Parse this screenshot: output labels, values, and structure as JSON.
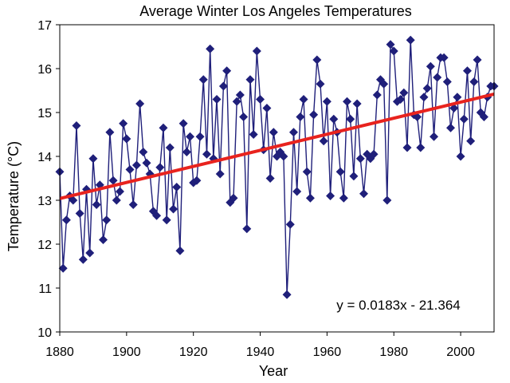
{
  "chart_data": {
    "type": "line",
    "title": "Average Winter Los Angeles Temperatures",
    "xlabel": "Year",
    "ylabel": "Temperature  (°C)",
    "xlim": [
      1880,
      2010
    ],
    "ylim": [
      10,
      17
    ],
    "xticks": [
      1880,
      1900,
      1920,
      1940,
      1960,
      1980,
      2000
    ],
    "yticks": [
      10,
      11,
      12,
      13,
      14,
      15,
      16,
      17
    ],
    "grid": false,
    "series": [
      {
        "color": "#1F1F7A",
        "marker": "diamond",
        "x": [
          1880,
          1881,
          1882,
          1883,
          1884,
          1885,
          1886,
          1887,
          1888,
          1889,
          1890,
          1891,
          1892,
          1893,
          1894,
          1895,
          1896,
          1897,
          1898,
          1899,
          1900,
          1901,
          1902,
          1903,
          1904,
          1905,
          1906,
          1907,
          1908,
          1909,
          1910,
          1911,
          1912,
          1913,
          1914,
          1915,
          1916,
          1917,
          1918,
          1919,
          1920,
          1921,
          1922,
          1923,
          1924,
          1925,
          1926,
          1927,
          1928,
          1929,
          1930,
          1931,
          1932,
          1933,
          1934,
          1935,
          1936,
          1937,
          1938,
          1939,
          1940,
          1941,
          1942,
          1943,
          1944,
          1945,
          1946,
          1947,
          1948,
          1949,
          1950,
          1951,
          1952,
          1953,
          1954,
          1955,
          1956,
          1957,
          1958,
          1959,
          1960,
          1961,
          1962,
          1963,
          1964,
          1965,
          1966,
          1967,
          1968,
          1969,
          1970,
          1971,
          1972,
          1973,
          1974,
          1975,
          1976,
          1977,
          1978,
          1979,
          1980,
          1981,
          1982,
          1983,
          1984,
          1985,
          1986,
          1987,
          1988,
          1989,
          1990,
          1991,
          1992,
          1993,
          1994,
          1995,
          1996,
          1997,
          1998,
          1999,
          2000,
          2001,
          2002,
          2003,
          2004,
          2005,
          2006,
          2007,
          2008,
          2009,
          2010
        ],
        "y": [
          13.65,
          11.45,
          12.55,
          13.1,
          13.0,
          14.7,
          12.7,
          11.65,
          13.25,
          11.8,
          13.95,
          12.9,
          13.35,
          12.1,
          12.55,
          14.55,
          13.45,
          13.0,
          13.2,
          14.75,
          14.4,
          13.7,
          12.9,
          13.8,
          15.2,
          14.1,
          13.85,
          13.6,
          12.75,
          12.65,
          13.75,
          14.65,
          12.55,
          14.2,
          12.8,
          13.3,
          11.85,
          14.75,
          14.1,
          14.45,
          13.4,
          13.45,
          14.45,
          15.75,
          14.05,
          16.45,
          13.95,
          15.3,
          13.6,
          15.6,
          15.95,
          12.95,
          13.05,
          15.25,
          15.4,
          14.9,
          12.35,
          15.75,
          14.5,
          16.4,
          15.3,
          14.15,
          15.1,
          13.5,
          14.55,
          14.0,
          14.1,
          14.0,
          10.85,
          12.45,
          14.55,
          13.2,
          14.9,
          15.3,
          13.65,
          13.05,
          14.95,
          16.2,
          15.65,
          14.35,
          15.25,
          13.1,
          14.85,
          14.55,
          13.65,
          13.05,
          15.25,
          14.85,
          13.55,
          15.2,
          13.95,
          13.15,
          14.05,
          13.95,
          14.05,
          15.4,
          15.75,
          15.65,
          13.0,
          16.55,
          16.4,
          15.25,
          15.3,
          15.45,
          14.2,
          16.65,
          14.95,
          14.9,
          14.2,
          15.35,
          15.55,
          16.05,
          14.45,
          15.8,
          16.25,
          16.25,
          15.7,
          14.65,
          15.1,
          15.35,
          14.0,
          14.85,
          15.95,
          14.35,
          15.7,
          16.2,
          15.0,
          14.9,
          15.35,
          15.6,
          15.6
        ]
      },
      {
        "type": "trendline",
        "color": "#E8231E",
        "equation": "y = 0.0183x - 21.364",
        "slope": 0.0183,
        "intercept": -21.364,
        "x_range": [
          1880,
          2010
        ]
      }
    ]
  }
}
